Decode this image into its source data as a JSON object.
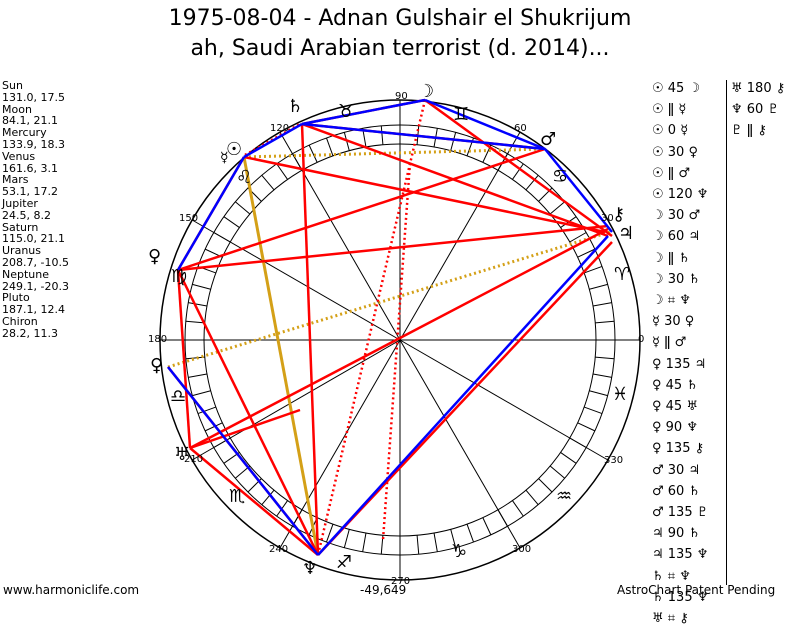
{
  "title": {
    "line1": "1975-08-04 - Adnan Gulshair el Shukrijum",
    "line2": "ah, Saudi Arabian terrorist (d. 2014)..."
  },
  "planets": [
    {
      "name": "Sun",
      "coords": "131.0, 17.5"
    },
    {
      "name": "Moon",
      "coords": "84.1, 21.1"
    },
    {
      "name": "Mercury",
      "coords": "133.9, 18.3"
    },
    {
      "name": "Venus",
      "coords": "161.6, 3.1"
    },
    {
      "name": "Mars",
      "coords": "53.1, 17.2"
    },
    {
      "name": "Jupiter",
      "coords": "24.5, 8.2"
    },
    {
      "name": "Saturn",
      "coords": "115.0, 21.1"
    },
    {
      "name": "Uranus",
      "coords": "208.7, -10.5"
    },
    {
      "name": "Neptune",
      "coords": "249.1, -20.3"
    },
    {
      "name": "Pluto",
      "coords": "187.1, 12.4"
    },
    {
      "name": "Chiron",
      "coords": "28.2, 11.3"
    }
  ],
  "degree_labels": [
    "90",
    "60",
    "30",
    "0",
    "330",
    "300",
    "270",
    "240",
    "210",
    "180",
    "150",
    "120"
  ],
  "aspects_col1": [
    "☉ 45 ☽",
    "☉ ǁ ☿",
    "☉ 0 ☿",
    "☉ 30 ♀",
    "☉ ǁ ♂",
    "☉ 120 ♆",
    "☽ 30 ♂",
    "☽ 60 ♃",
    "☽ ǁ ♄",
    "☽ 30 ♄",
    "☽ ⌗ ♆",
    "☿ 30 ♀",
    "☿ ǁ ♂",
    "♀ 135 ♃",
    "♀ 45 ♄",
    "♀ 45 ♅",
    "♀ 90 ♆",
    "♀ 135 ⚷",
    "♂ 30 ♃",
    "♂ 60 ♄",
    "♂ 135 ♇",
    "♃ 90 ♄",
    "♃ 135 ♆",
    "♄ ⌗ ♆",
    "♄ 135 ♆",
    "♅ ⌗ ⚷"
  ],
  "aspects_col2": [
    "♅ 180 ⚷",
    "♆ 60 ♇",
    "♇ ǁ ⚷"
  ],
  "footer": {
    "site": "www.harmoniclife.com",
    "value": "-49,649",
    "patent": "AstroChart Patent Pending"
  },
  "chart_data": {
    "type": "astrological-wheel",
    "house_cusps": [
      0,
      60,
      90,
      120,
      150,
      180,
      210,
      240,
      270,
      300,
      330
    ],
    "colors": {
      "red": "#ff0000",
      "blue": "#0000ff",
      "gold": "#d4a017"
    }
  }
}
